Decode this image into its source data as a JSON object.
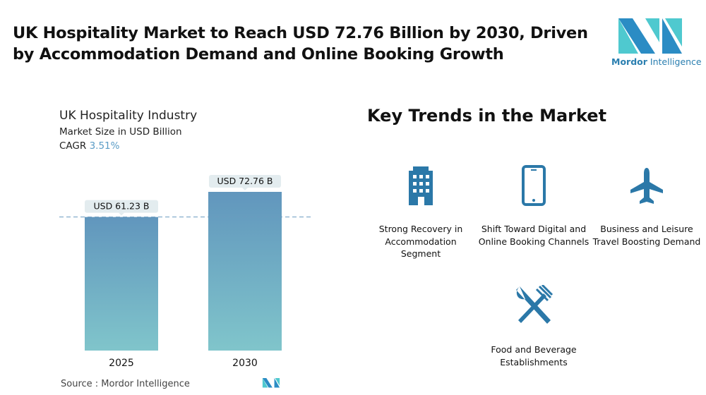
{
  "title": "UK Hospitality Market to Reach USD 72.76 Billion by 2030, Driven by Accommodation Demand and Online Booking Growth",
  "logo": {
    "text_bold": "Mordor",
    "text_regular": "Intelligence"
  },
  "chart_header": {
    "title": "UK Hospitality Industry",
    "subtitle": "Market Size in USD Billion",
    "cagr_label": "CAGR",
    "cagr_value": "3.51%"
  },
  "chart_data": {
    "type": "bar",
    "title": "UK Hospitality Industry",
    "ylabel": "Market Size in USD Billion",
    "categories": [
      "2025",
      "2030"
    ],
    "values": [
      61.23,
      72.76
    ],
    "data_labels": [
      "USD 61.23 B",
      "USD 72.76 B"
    ],
    "reference_line": 61.23,
    "colors": {
      "bar_top": "#6196bd",
      "bar_bottom": "#80c5cb",
      "label_bg": "#e3ecef",
      "ref_line": "#6b9cc0"
    }
  },
  "source": "Source :  Mordor Intelligence",
  "key_trends": {
    "title": "Key Trends in the Market",
    "items": [
      {
        "icon": "building-icon",
        "label": "Strong Recovery in Accommodation Segment"
      },
      {
        "icon": "smartphone-icon",
        "label": "Shift Toward Digital and Online Booking Channels"
      },
      {
        "icon": "airplane-icon",
        "label": "Business and Leisure Travel Boosting Demand"
      },
      {
        "icon": "fork-knife-icon",
        "label": "Food and Beverage Establishments"
      }
    ],
    "icon_color": "#2b78a8"
  }
}
